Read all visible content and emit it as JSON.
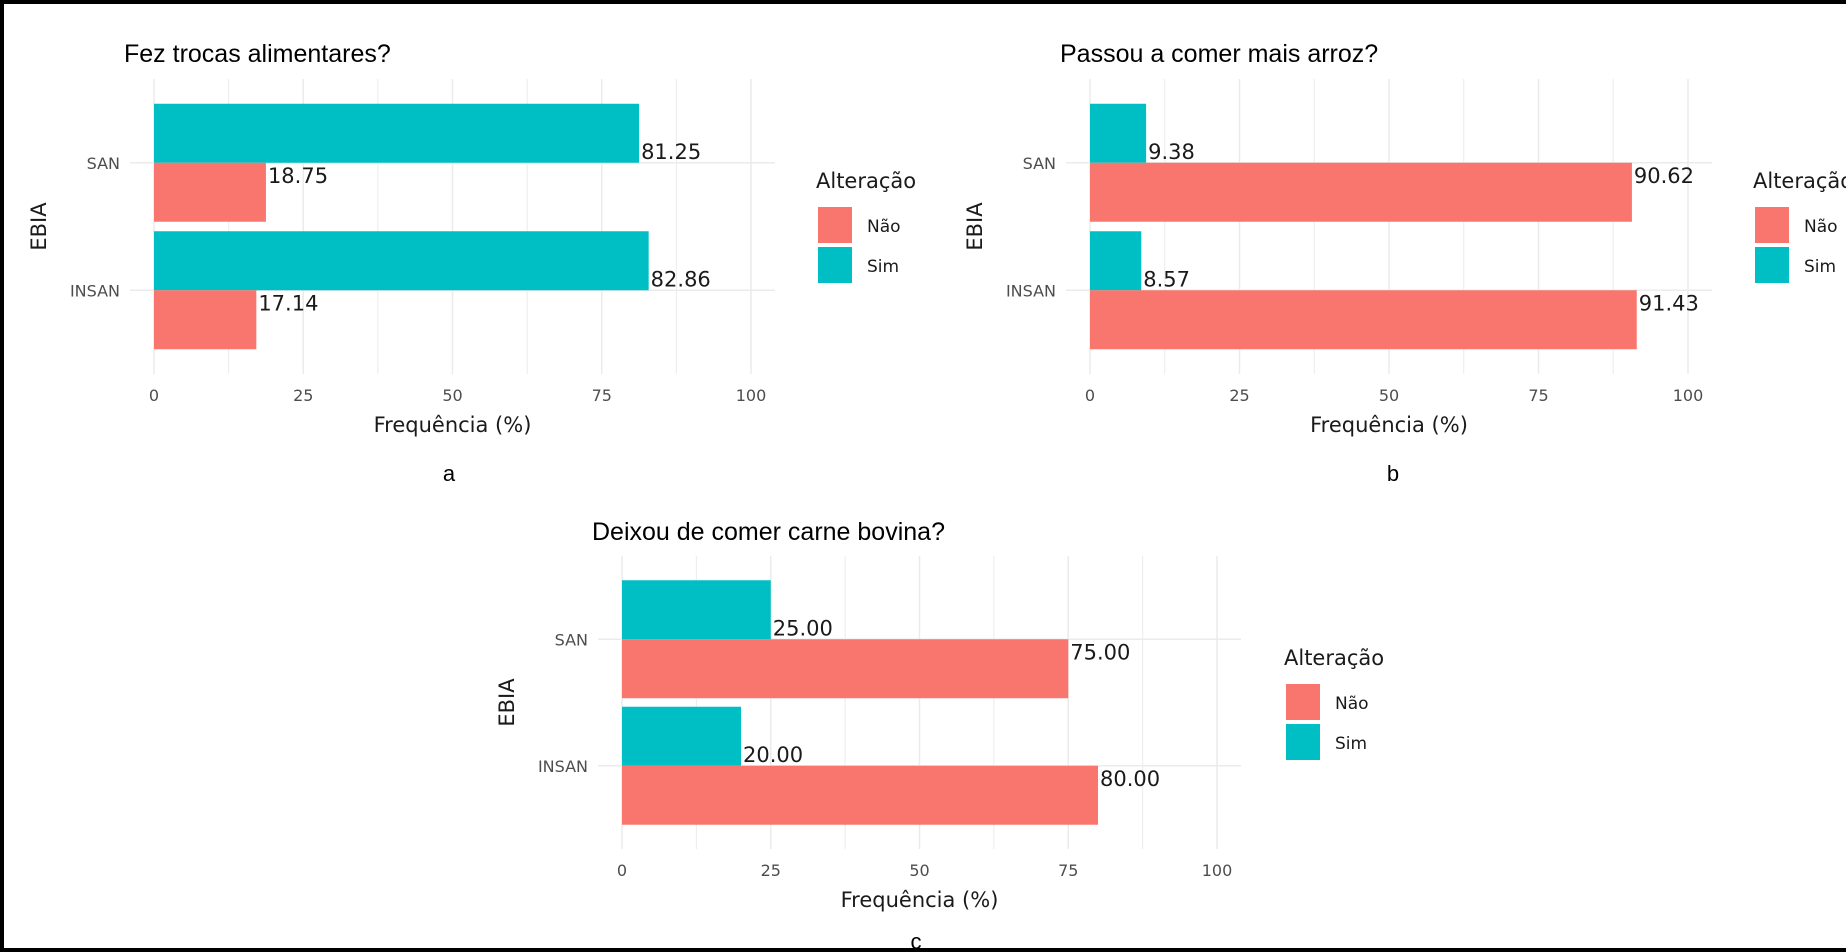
{
  "chart_data": [
    {
      "type": "bar",
      "orientation": "horizontal",
      "title": "Fez trocas alimentares?",
      "xlabel": "Frequência (%)",
      "ylabel": "EBIA",
      "categories": [
        "SAN",
        "INSAN"
      ],
      "xlim": [
        0,
        100
      ],
      "xticks": [
        "0",
        "25",
        "50",
        "75",
        "100"
      ],
      "grid": true,
      "legend": {
        "title": "Alteração",
        "position": "right"
      },
      "series": [
        {
          "name": "Sim",
          "color": "#00BFC4",
          "values": [
            81.25,
            82.86
          ],
          "labels": [
            "81.25",
            "82.86"
          ]
        },
        {
          "name": "Não",
          "color": "#F8766D",
          "values": [
            18.75,
            17.14
          ],
          "labels": [
            "18.75",
            "17.14"
          ]
        }
      ],
      "caption": "a"
    },
    {
      "type": "bar",
      "orientation": "horizontal",
      "title": "Passou a comer mais arroz?",
      "xlabel": "Frequência (%)",
      "ylabel": "EBIA",
      "categories": [
        "SAN",
        "INSAN"
      ],
      "xlim": [
        0,
        100
      ],
      "xticks": [
        "0",
        "25",
        "50",
        "75",
        "100"
      ],
      "grid": true,
      "legend": {
        "title": "Alteração",
        "position": "right"
      },
      "series": [
        {
          "name": "Sim",
          "color": "#00BFC4",
          "values": [
            9.38,
            8.57
          ],
          "labels": [
            "9.38",
            "8.57"
          ]
        },
        {
          "name": "Não",
          "color": "#F8766D",
          "values": [
            90.62,
            91.43
          ],
          "labels": [
            "90.62",
            "91.43"
          ]
        }
      ],
      "caption": "b"
    },
    {
      "type": "bar",
      "orientation": "horizontal",
      "title": "Deixou de comer carne bovina?",
      "xlabel": "Frequência (%)",
      "ylabel": "EBIA",
      "categories": [
        "SAN",
        "INSAN"
      ],
      "xlim": [
        0,
        100
      ],
      "xticks": [
        "0",
        "25",
        "50",
        "75",
        "100"
      ],
      "grid": true,
      "legend": {
        "title": "Alteração",
        "position": "right"
      },
      "series": [
        {
          "name": "Sim",
          "color": "#00BFC4",
          "values": [
            25.0,
            20.0
          ],
          "labels": [
            "25.00",
            "20.00"
          ]
        },
        {
          "name": "Não",
          "color": "#F8766D",
          "values": [
            75.0,
            80.0
          ],
          "labels": [
            "75.00",
            "80.00"
          ]
        }
      ],
      "caption": "c"
    }
  ],
  "legend_items": [
    {
      "name": "Não",
      "color": "#F8766D"
    },
    {
      "name": "Sim",
      "color": "#00BFC4"
    }
  ],
  "colors": {
    "grid": "#ebebeb",
    "tick_text": "#4d4d4d",
    "text": "#1a1a1a",
    "border": "#000000"
  }
}
